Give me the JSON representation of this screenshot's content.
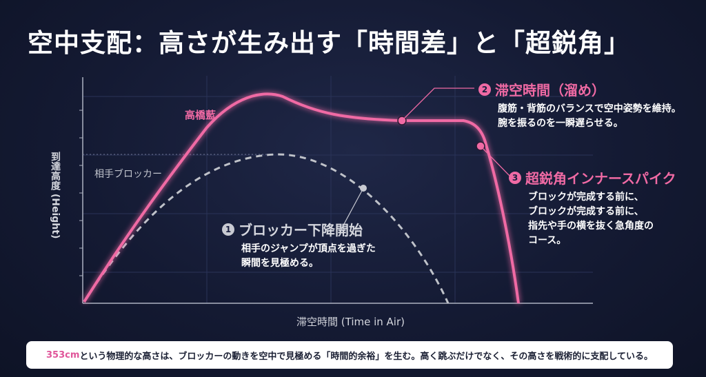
{
  "title": "空中支配：高さが生み出す「時間差」と「超鋭角」",
  "axes": {
    "y_label": "到達高度 (Height)",
    "x_label": "滞空時間 (Time in Air)"
  },
  "series_labels": {
    "main": "高橋藍",
    "opponent": "相手ブロッカー"
  },
  "annotations": [
    {
      "number": "1",
      "heading": "ブロッカー下降開始",
      "lines": [
        "相手のジャンプが頂点を過ぎた",
        "瞬間を見極める。"
      ]
    },
    {
      "number": "2",
      "heading": "滞空時間（溜め）",
      "lines": [
        "腹筋・背筋のバランスで空中姿勢を維持。",
        "腕を振るのを一瞬遅らせる。"
      ]
    },
    {
      "number": "3",
      "heading": "超鋭角インナースパイク",
      "lines": [
        "ブロックが完成する前に、",
        "ブロックが完成する前に、",
        "指先や手の横を抜く急角度の",
        "コース。"
      ]
    }
  ],
  "caption": {
    "highlight": "353cm",
    "text": "という物理的な高さは、ブロッカーの動きを空中で見極める「時間的余裕」を生む。高く跳ぶだけでなく、その高さを戦術的に支配している。"
  },
  "colors": {
    "main_curve": "#f06aa4",
    "opponent_curve": "#bfc2c9",
    "background": "#161c37"
  }
}
